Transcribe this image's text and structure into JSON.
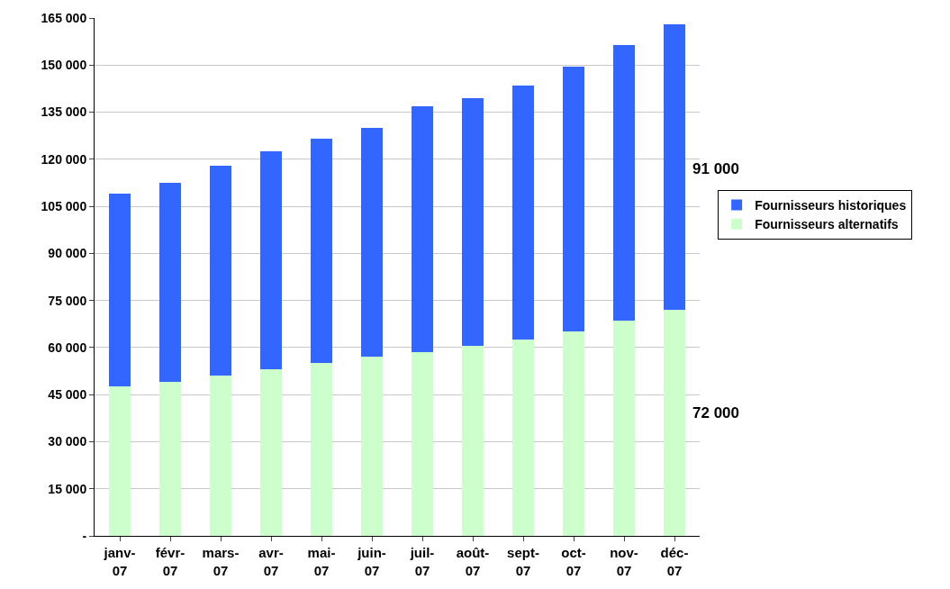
{
  "chart_data": {
    "type": "bar",
    "stacked": true,
    "categories": [
      "janv-07",
      "févr-07",
      "mars-07",
      "avr-07",
      "mai-07",
      "juin-07",
      "juil-07",
      "août-07",
      "sept-07",
      "oct-07",
      "nov-07",
      "déc-07"
    ],
    "series": [
      {
        "name": "Fournisseurs alternatifs",
        "color": "#ccffcc",
        "values": [
          47500,
          49000,
          51000,
          53000,
          55000,
          57000,
          58500,
          60500,
          62500,
          65000,
          68500,
          72000
        ]
      },
      {
        "name": "Fournisseurs historiques",
        "color": "#3366ff",
        "values": [
          61500,
          63500,
          67000,
          69500,
          71500,
          73000,
          78500,
          79000,
          81000,
          84500,
          88000,
          91000
        ]
      }
    ],
    "ylim": [
      0,
      165000
    ],
    "yticks": [
      {
        "value": 0,
        "label": "-"
      },
      {
        "value": 15000,
        "label": "15 000"
      },
      {
        "value": 30000,
        "label": "30 000"
      },
      {
        "value": 45000,
        "label": "45 000"
      },
      {
        "value": 60000,
        "label": "60 000"
      },
      {
        "value": 75000,
        "label": "75 000"
      },
      {
        "value": 90000,
        "label": "90 000"
      },
      {
        "value": 105000,
        "label": "105 000"
      },
      {
        "value": 120000,
        "label": "120 000"
      },
      {
        "value": 135000,
        "label": "135 000"
      },
      {
        "value": 150000,
        "label": "150 000"
      },
      {
        "value": 165000,
        "label": "165 000"
      }
    ],
    "annotations": [
      "91 000",
      "72 000"
    ],
    "grid": "y",
    "legend": "right"
  }
}
